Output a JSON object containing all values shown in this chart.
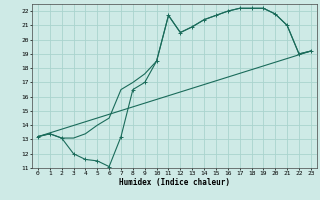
{
  "xlabel": "Humidex (Indice chaleur)",
  "bg_color": "#ceeae6",
  "grid_color": "#aad4ce",
  "line_color": "#1a6b5a",
  "xlim": [
    -0.5,
    23.5
  ],
  "ylim": [
    11,
    22.5
  ],
  "xticks": [
    0,
    1,
    2,
    3,
    4,
    5,
    6,
    7,
    8,
    9,
    10,
    11,
    12,
    13,
    14,
    15,
    16,
    17,
    18,
    19,
    20,
    21,
    22,
    23
  ],
  "yticks": [
    11,
    12,
    13,
    14,
    15,
    16,
    17,
    18,
    19,
    20,
    21,
    22
  ],
  "line1_x": [
    0,
    1,
    2,
    3,
    4,
    5,
    6,
    7,
    8,
    9,
    10,
    11,
    12,
    13,
    14,
    15,
    16,
    17,
    18,
    19,
    20,
    21,
    22,
    23
  ],
  "line1_y": [
    13.2,
    13.4,
    13.1,
    12.0,
    11.6,
    11.5,
    11.1,
    13.2,
    16.5,
    17.0,
    18.5,
    21.7,
    20.5,
    20.9,
    21.4,
    21.7,
    22.0,
    22.2,
    22.2,
    22.2,
    21.8,
    21.0,
    19.0,
    19.2
  ],
  "line2_x": [
    0,
    23
  ],
  "line2_y": [
    13.2,
    19.2
  ],
  "line3_x": [
    0,
    1,
    2,
    3,
    4,
    5,
    6,
    7,
    8,
    9,
    10,
    11,
    12,
    13,
    14,
    15,
    16,
    17,
    18,
    19,
    20,
    21,
    22,
    23
  ],
  "line3_y": [
    13.2,
    13.4,
    13.1,
    13.1,
    13.4,
    14.0,
    14.5,
    16.5,
    17.0,
    17.6,
    18.5,
    21.7,
    20.5,
    20.9,
    21.4,
    21.7,
    22.0,
    22.2,
    22.2,
    22.2,
    21.8,
    21.0,
    19.0,
    19.2
  ]
}
